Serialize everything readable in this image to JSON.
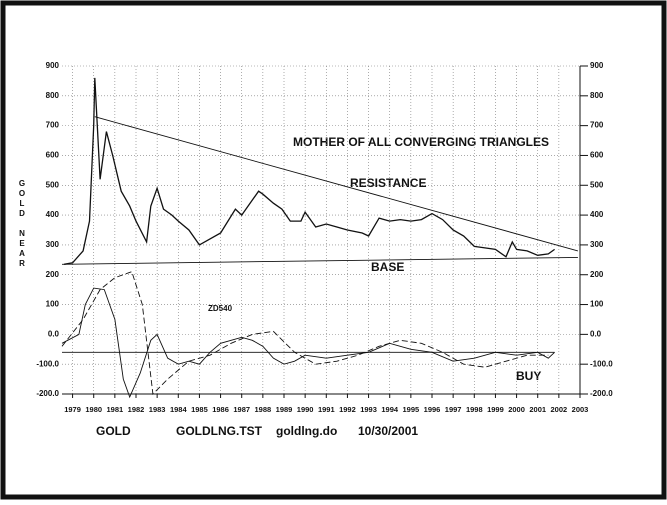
{
  "chart_data": {
    "type": "line",
    "ylabel": "GOLD NEAR",
    "annotations": [
      "MOTHER OF ALL CONVERGING TRIANGLES",
      "RESISTANCE",
      "BASE",
      "ZD540",
      "BUY"
    ],
    "footer": [
      "GOLD",
      "GOLDLNG.TST",
      "goldlng.do",
      "10/30/2001"
    ],
    "xlim": [
      1978.5,
      2003
    ],
    "xticks": [
      1979,
      1980,
      1981,
      1982,
      1983,
      1984,
      1985,
      1986,
      1987,
      1988,
      1989,
      1990,
      1991,
      1992,
      1993,
      1994,
      1995,
      1996,
      1997,
      1998,
      1999,
      2000,
      2001,
      2002,
      2003
    ],
    "ylim": [
      -200,
      900
    ],
    "yticks": [
      {
        "value": -200,
        "label": "-200.0"
      },
      {
        "value": -100,
        "label": "-100.0"
      },
      {
        "value": 0,
        "label": "0.0"
      },
      100,
      200,
      300,
      400,
      500,
      600,
      700,
      800,
      900
    ],
    "grid": true,
    "series": [
      {
        "color": "#111",
        "dash": false,
        "x": [
          1978.6,
          1979.0,
          1979.5,
          1979.8,
          1980.0,
          1980.05,
          1980.3,
          1980.6,
          1980.9,
          1981.3,
          1981.7,
          1982.0,
          1982.5,
          1982.7,
          1983.0,
          1983.3,
          1983.7,
          1984.0,
          1984.5,
          1985.0,
          1985.5,
          1986.0,
          1986.7,
          1987.0,
          1987.8,
          1988.0,
          1988.5,
          1988.9,
          1989.3,
          1989.8,
          1990.0,
          1990.5,
          1991.0,
          1991.5,
          1992.0,
          1992.7,
          1993.0,
          1993.5,
          1994.0,
          1994.5,
          1995.0,
          1995.5,
          1996.0,
          1996.5,
          1997.0,
          1997.5,
          1998.0,
          1998.5,
          1999.0,
          1999.5,
          1999.8,
          2000.0,
          2000.5,
          2001.0,
          2001.5,
          2001.8
        ],
        "values": [
          235,
          240,
          280,
          380,
          700,
          860,
          520,
          680,
          600,
          480,
          430,
          380,
          310,
          430,
          490,
          420,
          400,
          380,
          350,
          300,
          320,
          340,
          420,
          400,
          480,
          470,
          440,
          420,
          380,
          380,
          410,
          360,
          370,
          360,
          350,
          340,
          330,
          390,
          380,
          385,
          380,
          385,
          405,
          385,
          350,
          330,
          295,
          290,
          285,
          260,
          310,
          285,
          280,
          265,
          270,
          285
        ]
      },
      {
        "color": "#111",
        "dash": false,
        "x": [
          1980.05,
          2002.9
        ],
        "values": [
          730,
          280
        ]
      },
      {
        "color": "#111",
        "dash": false,
        "x": [
          1978.5,
          2002.9
        ],
        "values": [
          235,
          258
        ]
      },
      {
        "color": "#111",
        "dash": false,
        "x": [
          1978.5,
          1979.3,
          1979.6,
          1980.0,
          1980.5,
          1981.0,
          1981.4,
          1981.7,
          1982.2,
          1982.7,
          1983.0,
          1983.5,
          1984.0,
          1984.5,
          1985.0,
          1985.5,
          1986.0,
          1986.5,
          1987.0,
          1987.5,
          1988.0,
          1988.5,
          1989.0,
          1989.5,
          1990.0,
          1991.0,
          1992.0,
          1993.0,
          1994.0,
          1995.0,
          1996.0,
          1997.0,
          1998.0,
          1999.0,
          2000.0,
          2001.0,
          2001.5,
          2001.8
        ],
        "values": [
          -30,
          0,
          100,
          155,
          150,
          50,
          -150,
          -210,
          -130,
          -20,
          0,
          -80,
          -100,
          -90,
          -100,
          -60,
          -30,
          -20,
          -10,
          -20,
          -40,
          -80,
          -100,
          -90,
          -70,
          -80,
          -70,
          -60,
          -30,
          -50,
          -60,
          -90,
          -80,
          -60,
          -70,
          -60,
          -80,
          -60
        ]
      },
      {
        "color": "#111",
        "dash": true,
        "x": [
          1978.5,
          1979.5,
          1980.3,
          1981.0,
          1981.8,
          1982.3,
          1982.8,
          1983.5,
          1984.5,
          1985.5,
          1986.5,
          1987.5,
          1988.5,
          1989.5,
          1990.5,
          1991.5,
          1992.5,
          1993.5,
          1994.5,
          1995.5,
          1996.5,
          1997.5,
          1998.5,
          1999.5,
          2000.5,
          2001.5
        ],
        "values": [
          -40,
          50,
          150,
          190,
          210,
          100,
          -200,
          -150,
          -90,
          -70,
          -30,
          0,
          10,
          -60,
          -100,
          -90,
          -70,
          -40,
          -20,
          -30,
          -60,
          -100,
          -110,
          -90,
          -70,
          -70
        ]
      },
      {
        "color": "#111",
        "dash": false,
        "x": [
          1978.5,
          2001.8
        ],
        "values": [
          -60,
          -60
        ]
      }
    ]
  }
}
